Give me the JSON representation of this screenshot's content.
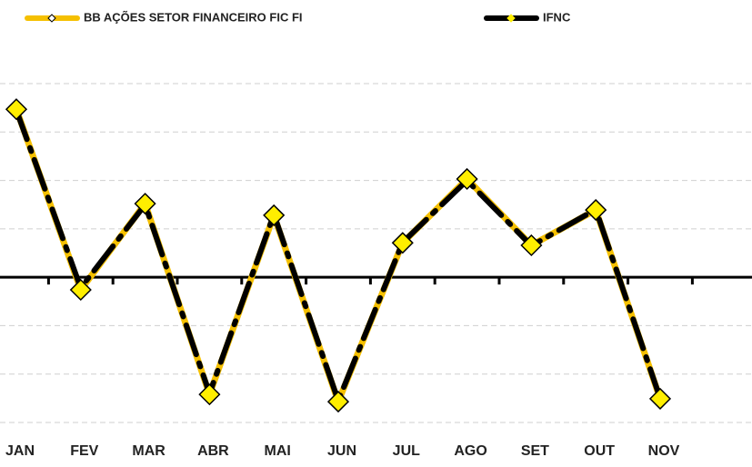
{
  "chart_data": {
    "type": "line",
    "categories": [
      "JAN",
      "FEV",
      "MAR",
      "ABR",
      "MAI",
      "JUN",
      "JUL",
      "AGO",
      "SET",
      "OUT",
      "NOV"
    ],
    "series": [
      {
        "name": "BB AÇÕES SETOR FINANCEIRO FIC FI",
        "color": "#f5c000",
        "marker_color": "#ffee00",
        "values": [
          3.47,
          -0.26,
          1.52,
          -2.42,
          1.28,
          -2.57,
          0.71,
          2.03,
          0.66,
          1.39,
          -2.51
        ]
      },
      {
        "name": "IFNC",
        "color": "#000000",
        "marker_color": "#ffee00",
        "values": [
          3.45,
          -0.22,
          1.5,
          -2.4,
          1.3,
          -2.55,
          0.72,
          2.0,
          0.65,
          1.4,
          -2.5
        ]
      }
    ],
    "ylim": [
      -3,
      4
    ],
    "yticks": [
      -3,
      -2,
      -1,
      0,
      1,
      2,
      3,
      4
    ],
    "grid": true,
    "legend": "top"
  }
}
